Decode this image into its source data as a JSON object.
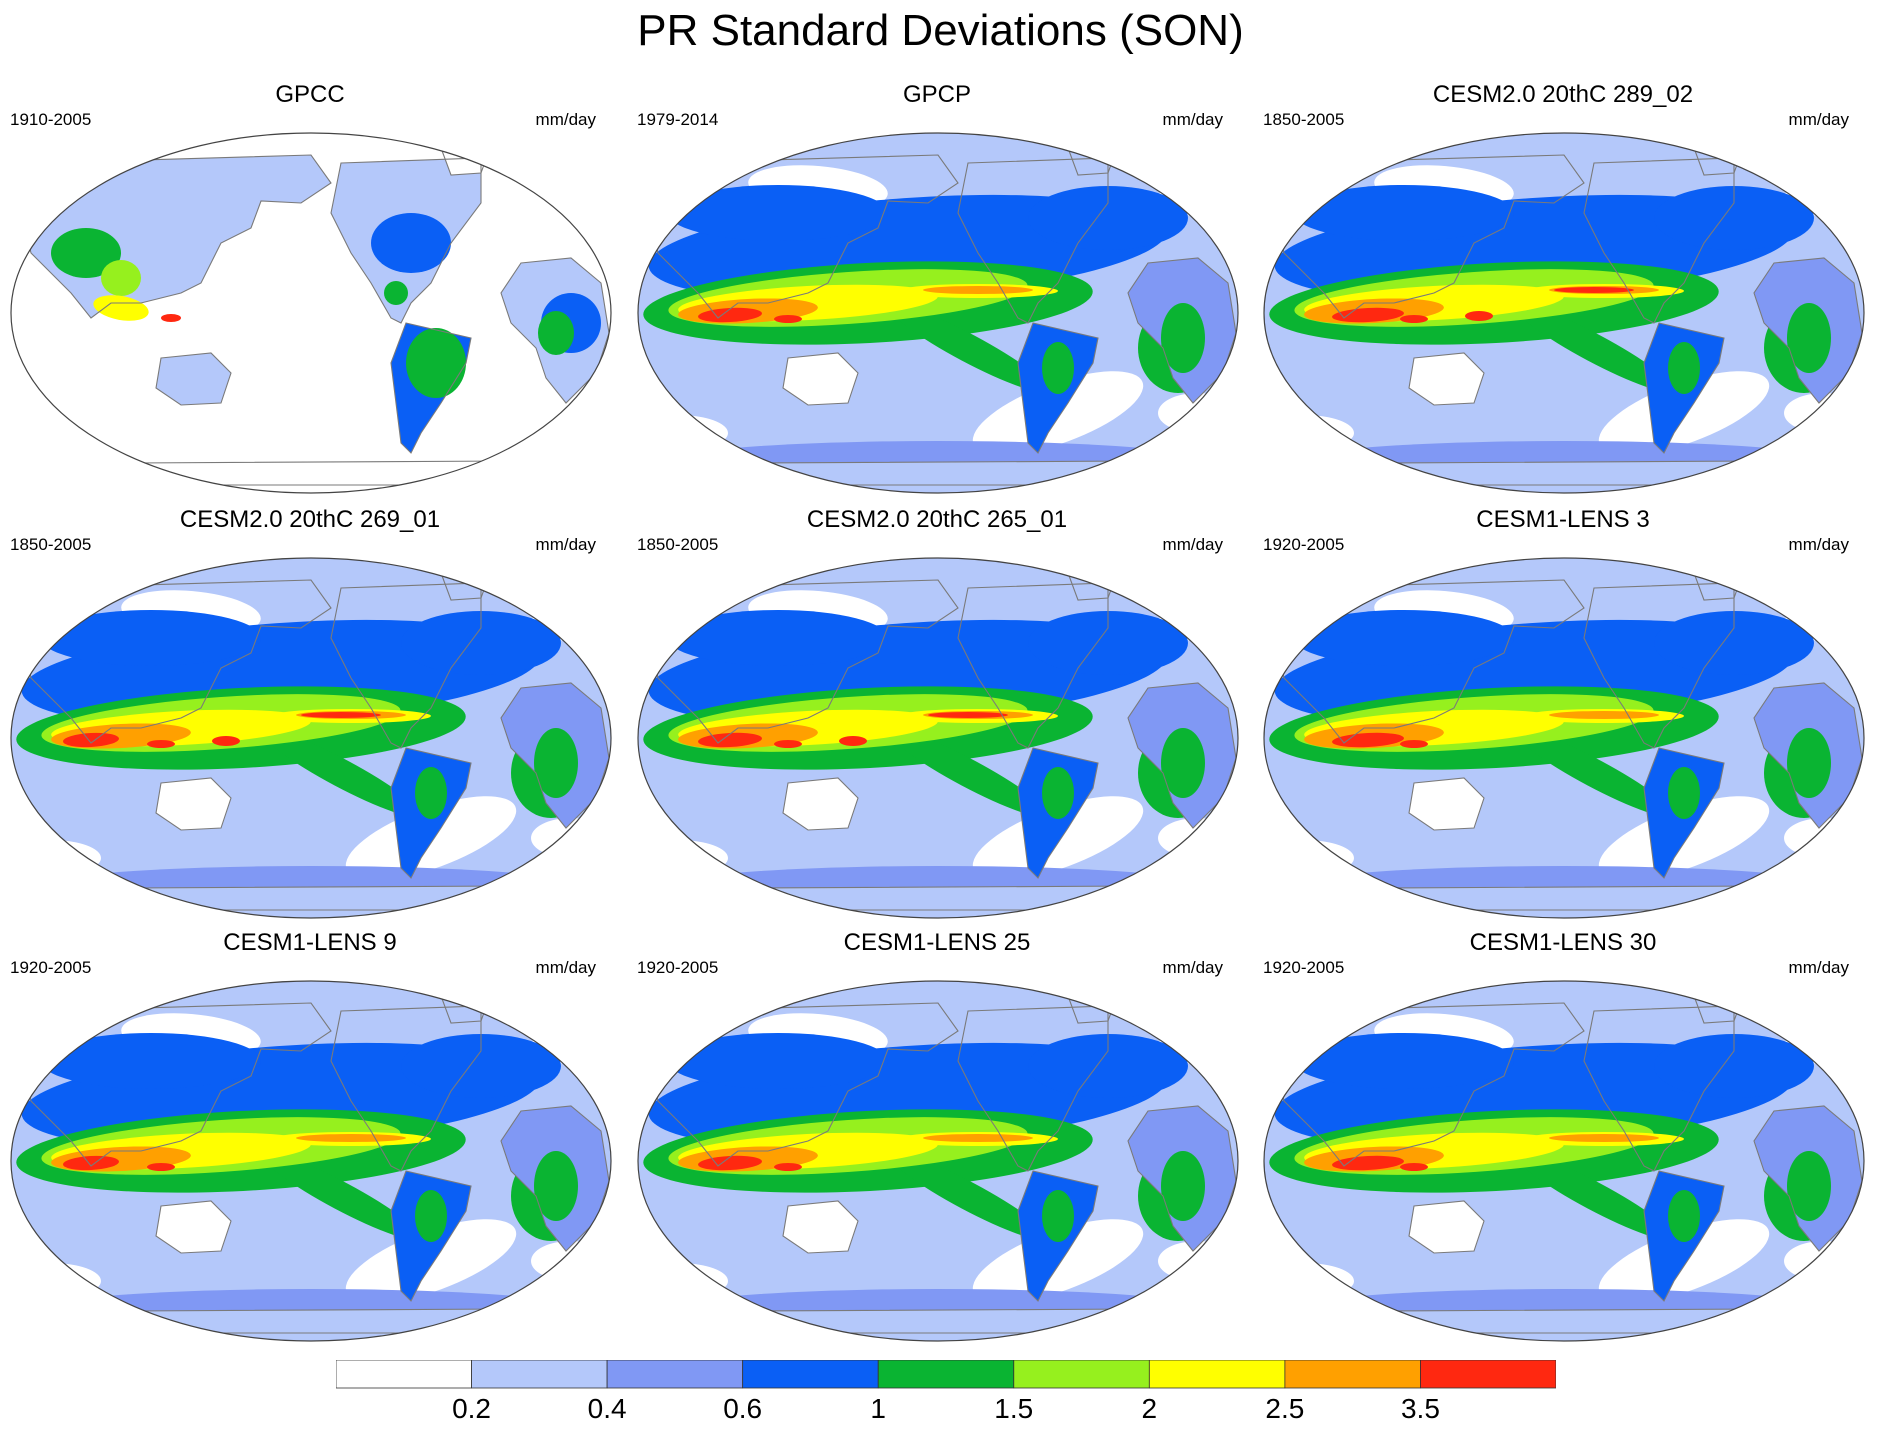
{
  "title": "PR Standard Deviations (SON)",
  "panels": [
    {
      "name": "GPCC",
      "period": "1910-2005",
      "units": "mm/day",
      "land_only": true
    },
    {
      "name": "GPCP",
      "period": "1979-2014",
      "units": "mm/day",
      "land_only": false
    },
    {
      "name": "CESM2.0 20thC 289_02",
      "period": "1850-2005",
      "units": "mm/day",
      "land_only": false
    },
    {
      "name": "CESM2.0 20thC 269_01",
      "period": "1850-2005",
      "units": "mm/day",
      "land_only": false
    },
    {
      "name": "CESM2.0 20thC 265_01",
      "period": "1850-2005",
      "units": "mm/day",
      "land_only": false
    },
    {
      "name": "CESM1-LENS 3",
      "period": "1920-2005",
      "units": "mm/day",
      "land_only": false
    },
    {
      "name": "CESM1-LENS 9",
      "period": "1920-2005",
      "units": "mm/day",
      "land_only": false
    },
    {
      "name": "CESM1-LENS 25",
      "period": "1920-2005",
      "units": "mm/day",
      "land_only": false
    },
    {
      "name": "CESM1-LENS 30",
      "period": "1920-2005",
      "units": "mm/day",
      "land_only": false
    }
  ],
  "colorbar": {
    "labels": [
      "0.2",
      "0.4",
      "0.6",
      "1",
      "1.5",
      "2",
      "2.5",
      "3.5"
    ],
    "colors": [
      "#ffffff",
      "#b4c8fa",
      "#8098f4",
      "#0a5ff5",
      "#0ab432",
      "#96f01e",
      "#ffff00",
      "#ffa000",
      "#ff2810"
    ]
  }
}
